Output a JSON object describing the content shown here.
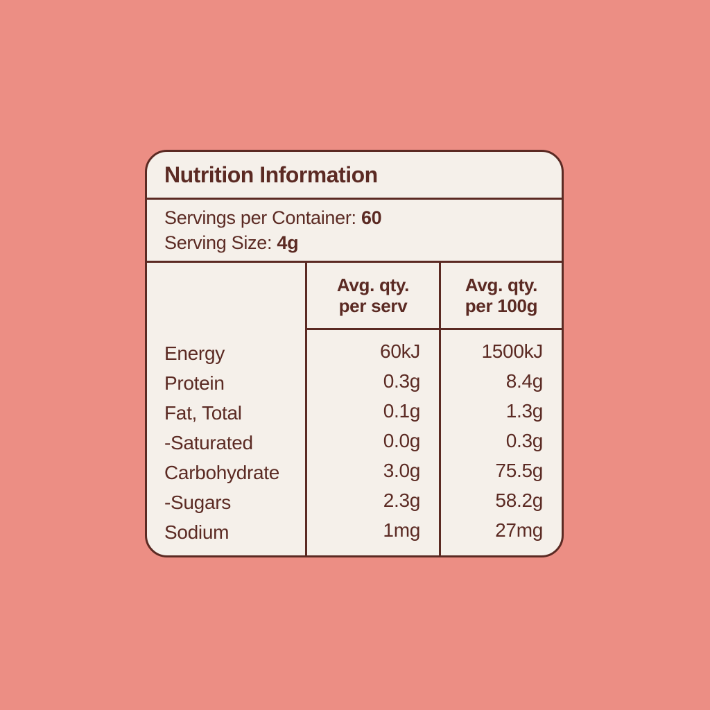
{
  "page": {
    "background_color": "#EC8E84"
  },
  "card": {
    "background_color": "#F5F0EA",
    "border_color": "#5B2A23",
    "text_color": "#5B2A23",
    "title": "Nutrition Information",
    "servings": {
      "per_container_label": "Servings per Container: ",
      "per_container_value": "60",
      "serving_size_label": "Serving Size: ",
      "serving_size_value": "4g"
    },
    "table": {
      "headers": {
        "per_serv_line1": "Avg. qty.",
        "per_serv_line2": "per serv",
        "per_100g_line1": "Avg. qty.",
        "per_100g_line2": "per 100g"
      },
      "rows": [
        {
          "label": "Energy",
          "per_serv": "60kJ",
          "per_100g": "1500kJ"
        },
        {
          "label": "Protein",
          "per_serv": "0.3g",
          "per_100g": "8.4g"
        },
        {
          "label": "Fat, Total",
          "per_serv": "0.1g",
          "per_100g": "1.3g"
        },
        {
          "label": "-Saturated",
          "per_serv": "0.0g",
          "per_100g": "0.3g"
        },
        {
          "label": "Carbohydrate",
          "per_serv": "3.0g",
          "per_100g": "75.5g"
        },
        {
          "label": "-Sugars",
          "per_serv": "2.3g",
          "per_100g": "58.2g"
        },
        {
          "label": "Sodium",
          "per_serv": "1mg",
          "per_100g": "27mg"
        }
      ]
    }
  }
}
